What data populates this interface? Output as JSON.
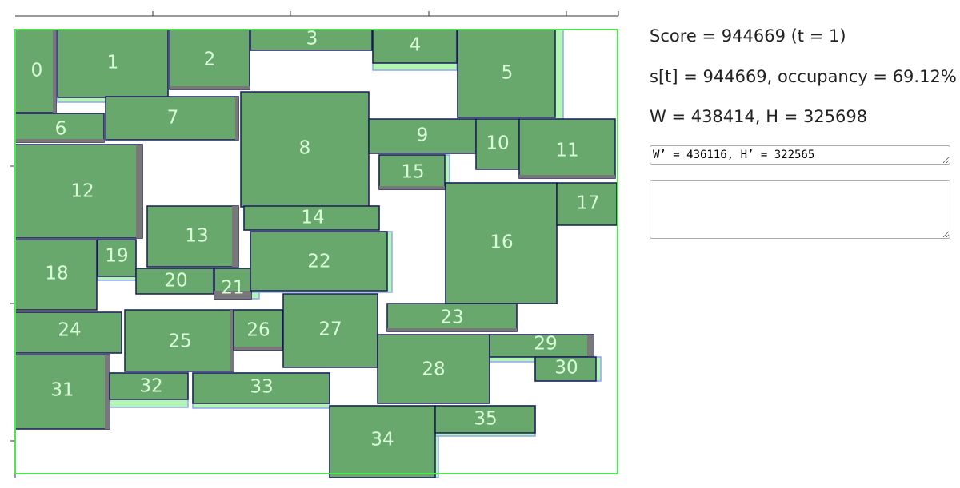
{
  "score_text": "Score = 944669 (t = 1)",
  "state_text": "s[t] = 944669, occupancy = 69.12%",
  "size_text": "W = 438414, H = 325698",
  "input_text": "W’ = 436116, H’ = 322565",
  "output_text": "",
  "colors": {
    "fill": "#68a86c",
    "border": "#1b1b5a",
    "shadow": "#787878",
    "ghost_fill": "#b3f5b3",
    "ghost_border": "#8fa6f5",
    "frame": "#4ee84e",
    "label": "#d9ffd9"
  },
  "labels": [
    "0",
    "1",
    "2",
    "3",
    "4",
    "5",
    "6",
    "7",
    "8",
    "9",
    "10",
    "11",
    "12",
    "13",
    "14",
    "15",
    "16",
    "17",
    "18",
    "19",
    "20",
    "21",
    "22",
    "23",
    "24",
    "25",
    "26",
    "27",
    "28",
    "29",
    "30",
    "31",
    "32",
    "33",
    "34",
    "35"
  ]
}
